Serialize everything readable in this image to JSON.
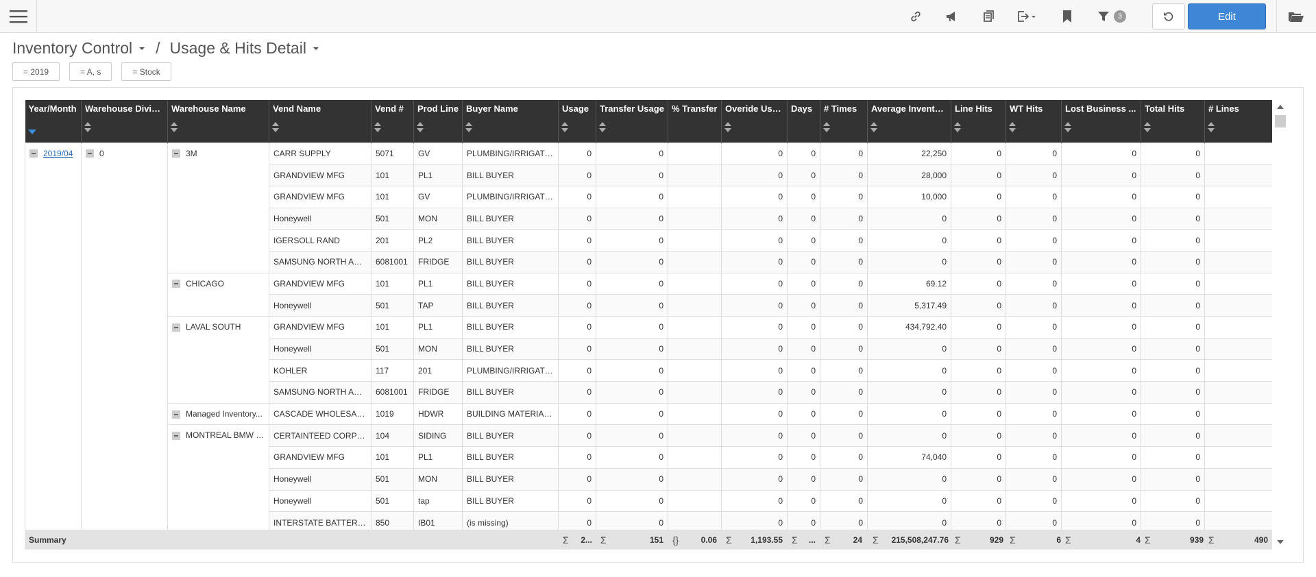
{
  "toolbar": {
    "icons": [
      "menu-icon",
      "link-icon",
      "megaphone-icon",
      "copy-icon",
      "export-icon",
      "bookmark-icon",
      "filter-icon"
    ],
    "filter_count": "3",
    "edit_label": "Edit"
  },
  "breadcrumb": {
    "parent": "Inventory Control",
    "separator": "/",
    "current": "Usage & Hits Detail"
  },
  "filters": [
    "= 2019",
    "= A, s",
    "= Stock"
  ],
  "columns": [
    "Year/Month",
    "Warehouse Divisi...",
    "Warehouse Name",
    "Vend Name",
    "Vend #",
    "Prod Line",
    "Buyer Name",
    "Usage",
    "Transfer Usage",
    "% Transfer",
    "Overide Usa...",
    "Days",
    "# Times",
    "Average Inventory",
    "Line Hits",
    "WT Hits",
    "Lost Business ...",
    "Total Hits",
    "# Lines"
  ],
  "groups": {
    "year_month": "2019/04",
    "division": "0"
  },
  "rows": [
    {
      "wh": "3M",
      "vend": "CARR SUPPLY",
      "vnum": "5071",
      "pl": "GV",
      "buyer": "PLUMBING/IRRIGATION",
      "usage": "0",
      "tu": "0",
      "pt": "",
      "ou": "0",
      "days": "0",
      "times": "0",
      "avg": "22,250",
      "lh": "0",
      "wt": "0",
      "lb": "0",
      "th": "0",
      "lines": ""
    },
    {
      "wh": "",
      "vend": "GRANDVIEW MFG",
      "vnum": "101",
      "pl": "PL1",
      "buyer": "BILL BUYER",
      "usage": "0",
      "tu": "0",
      "pt": "",
      "ou": "0",
      "days": "0",
      "times": "0",
      "avg": "28,000",
      "lh": "0",
      "wt": "0",
      "lb": "0",
      "th": "0",
      "lines": ""
    },
    {
      "wh": "",
      "vend": "GRANDVIEW MFG",
      "vnum": "101",
      "pl": "GV",
      "buyer": "PLUMBING/IRRIGATION",
      "usage": "0",
      "tu": "0",
      "pt": "",
      "ou": "0",
      "days": "0",
      "times": "0",
      "avg": "10,000",
      "lh": "0",
      "wt": "0",
      "lb": "0",
      "th": "0",
      "lines": ""
    },
    {
      "wh": "",
      "vend": "Honeywell",
      "vnum": "501",
      "pl": "MON",
      "buyer": "BILL BUYER",
      "usage": "0",
      "tu": "0",
      "pt": "",
      "ou": "0",
      "days": "0",
      "times": "0",
      "avg": "0",
      "lh": "0",
      "wt": "0",
      "lb": "0",
      "th": "0",
      "lines": ""
    },
    {
      "wh": "",
      "vend": "IGERSOLL RAND",
      "vnum": "201",
      "pl": "PL2",
      "buyer": "BILL BUYER",
      "usage": "0",
      "tu": "0",
      "pt": "",
      "ou": "0",
      "days": "0",
      "times": "0",
      "avg": "0",
      "lh": "0",
      "wt": "0",
      "lb": "0",
      "th": "0",
      "lines": ""
    },
    {
      "wh": "",
      "vend": "SAMSUNG NORTH AME...",
      "vnum": "6081001",
      "pl": "FRIDGE",
      "buyer": "BILL BUYER",
      "usage": "0",
      "tu": "0",
      "pt": "",
      "ou": "0",
      "days": "0",
      "times": "0",
      "avg": "0",
      "lh": "0",
      "wt": "0",
      "lb": "0",
      "th": "0",
      "lines": ""
    },
    {
      "wh": "CHICAGO",
      "vend": "GRANDVIEW MFG",
      "vnum": "101",
      "pl": "PL1",
      "buyer": "BILL BUYER",
      "usage": "0",
      "tu": "0",
      "pt": "",
      "ou": "0",
      "days": "0",
      "times": "0",
      "avg": "69.12",
      "lh": "0",
      "wt": "0",
      "lb": "0",
      "th": "0",
      "lines": ""
    },
    {
      "wh": "",
      "vend": "Honeywell",
      "vnum": "501",
      "pl": "TAP",
      "buyer": "BILL BUYER",
      "usage": "0",
      "tu": "0",
      "pt": "",
      "ou": "0",
      "days": "0",
      "times": "0",
      "avg": "5,317.49",
      "lh": "0",
      "wt": "0",
      "lb": "0",
      "th": "0",
      "lines": ""
    },
    {
      "wh": "LAVAL SOUTH",
      "vend": "GRANDVIEW MFG",
      "vnum": "101",
      "pl": "PL1",
      "buyer": "BILL BUYER",
      "usage": "0",
      "tu": "0",
      "pt": "",
      "ou": "0",
      "days": "0",
      "times": "0",
      "avg": "434,792.40",
      "lh": "0",
      "wt": "0",
      "lb": "0",
      "th": "0",
      "lines": ""
    },
    {
      "wh": "",
      "vend": "Honeywell",
      "vnum": "501",
      "pl": "MON",
      "buyer": "BILL BUYER",
      "usage": "0",
      "tu": "0",
      "pt": "",
      "ou": "0",
      "days": "0",
      "times": "0",
      "avg": "0",
      "lh": "0",
      "wt": "0",
      "lb": "0",
      "th": "0",
      "lines": ""
    },
    {
      "wh": "",
      "vend": "KOHLER",
      "vnum": "117",
      "pl": "201",
      "buyer": "PLUMBING/IRRIGATION",
      "usage": "0",
      "tu": "0",
      "pt": "",
      "ou": "0",
      "days": "0",
      "times": "0",
      "avg": "0",
      "lh": "0",
      "wt": "0",
      "lb": "0",
      "th": "0",
      "lines": ""
    },
    {
      "wh": "",
      "vend": "SAMSUNG NORTH AME...",
      "vnum": "6081001",
      "pl": "FRIDGE",
      "buyer": "BILL BUYER",
      "usage": "0",
      "tu": "0",
      "pt": "",
      "ou": "0",
      "days": "0",
      "times": "0",
      "avg": "0",
      "lh": "0",
      "wt": "0",
      "lb": "0",
      "th": "0",
      "lines": ""
    },
    {
      "wh": "Managed Inventory...",
      "vend": "CASCADE WHOLESALE ...",
      "vnum": "1019",
      "pl": "HDWR",
      "buyer": "BUILDING MATERIALS B",
      "usage": "0",
      "tu": "0",
      "pt": "",
      "ou": "0",
      "days": "0",
      "times": "0",
      "avg": "0",
      "lh": "0",
      "wt": "0",
      "lb": "0",
      "th": "0",
      "lines": ""
    },
    {
      "wh": "MONTREAL BMW - ...",
      "vend": "CERTAINTEED CORPOR...",
      "vnum": "104",
      "pl": "SIDING",
      "buyer": "BILL BUYER",
      "usage": "0",
      "tu": "0",
      "pt": "",
      "ou": "0",
      "days": "0",
      "times": "0",
      "avg": "0",
      "lh": "0",
      "wt": "0",
      "lb": "0",
      "th": "0",
      "lines": ""
    },
    {
      "wh": "",
      "vend": "GRANDVIEW MFG",
      "vnum": "101",
      "pl": "PL1",
      "buyer": "BILL BUYER",
      "usage": "0",
      "tu": "0",
      "pt": "",
      "ou": "0",
      "days": "0",
      "times": "0",
      "avg": "74,040",
      "lh": "0",
      "wt": "0",
      "lb": "0",
      "th": "0",
      "lines": ""
    },
    {
      "wh": "",
      "vend": "Honeywell",
      "vnum": "501",
      "pl": "MON",
      "buyer": "BILL BUYER",
      "usage": "0",
      "tu": "0",
      "pt": "",
      "ou": "0",
      "days": "0",
      "times": "0",
      "avg": "0",
      "lh": "0",
      "wt": "0",
      "lb": "0",
      "th": "0",
      "lines": ""
    },
    {
      "wh": "",
      "vend": "Honeywell",
      "vnum": "501",
      "pl": "tap",
      "buyer": "BILL BUYER",
      "usage": "0",
      "tu": "0",
      "pt": "",
      "ou": "0",
      "days": "0",
      "times": "0",
      "avg": "0",
      "lh": "0",
      "wt": "0",
      "lb": "0",
      "th": "0",
      "lines": ""
    },
    {
      "wh": "",
      "vend": "INTERSTATE BATTERIES",
      "vnum": "850",
      "pl": "IB01",
      "buyer": "(is missing)",
      "usage": "0",
      "tu": "0",
      "pt": "",
      "ou": "0",
      "days": "0",
      "times": "0",
      "avg": "0",
      "lh": "0",
      "wt": "0",
      "lb": "0",
      "th": "0",
      "lines": ""
    }
  ],
  "summary": {
    "label": "Summary",
    "usage": "2...",
    "transfer_usage": "151",
    "pct_transfer": "0.06",
    "override_usage": "1,193.55",
    "days": "...",
    "times": "24",
    "avg_inventory": "215,508,247.76",
    "line_hits": "929",
    "wt_hits": "6",
    "lost_business": "4",
    "total_hits": "939",
    "lines": "490",
    "sum_symbol": "Σ",
    "avg_symbol": "{}"
  }
}
